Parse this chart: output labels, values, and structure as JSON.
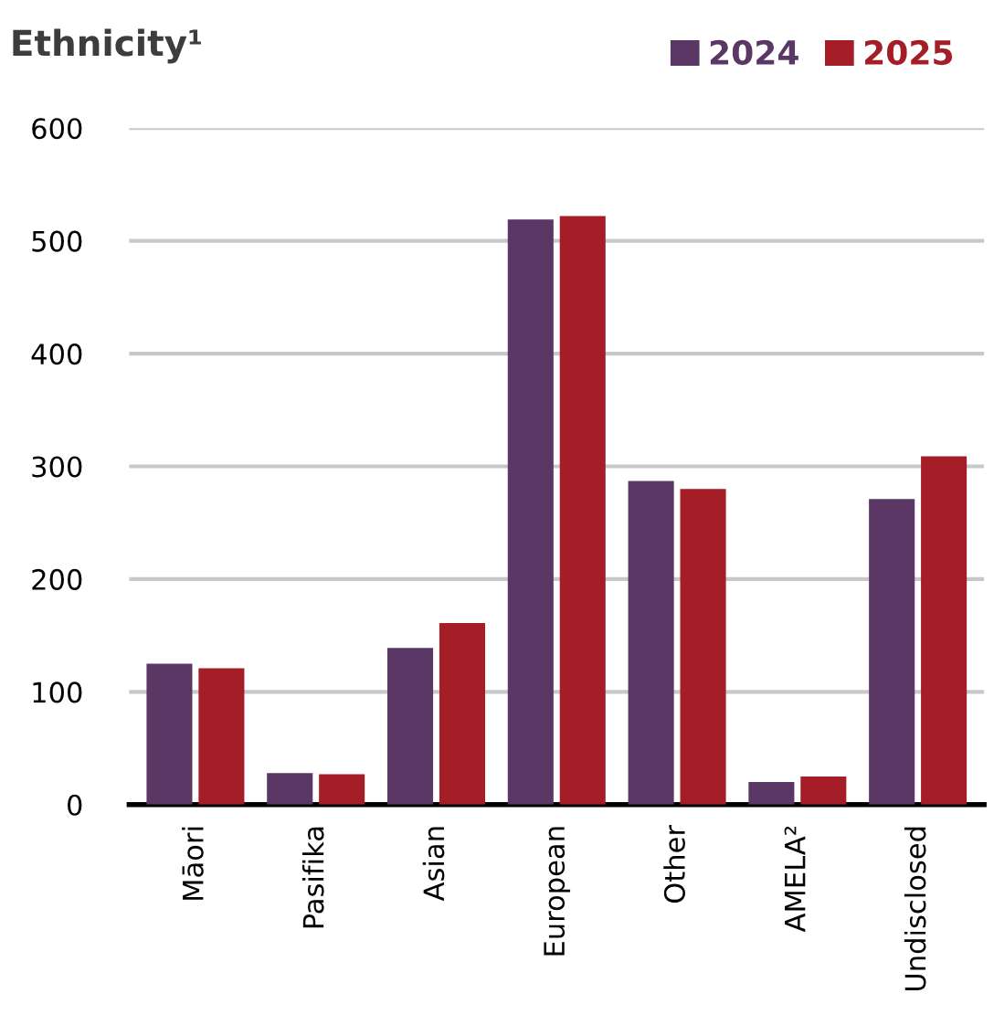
{
  "chart_data": {
    "type": "bar",
    "title": "Ethnicity¹",
    "categories": [
      "Māori",
      "Pasifika",
      "Asian",
      "European",
      "Other",
      "AMELA²",
      "Undisclosed"
    ],
    "series": [
      {
        "name": "2024",
        "color": "#5b3766",
        "values": [
          125,
          28,
          139,
          519,
          287,
          20,
          271
        ]
      },
      {
        "name": "2025",
        "color": "#a51d26",
        "values": [
          121,
          27,
          161,
          522,
          280,
          25,
          309
        ]
      }
    ],
    "ylim": [
      0,
      600
    ],
    "yticks": [
      0,
      100,
      200,
      300,
      400,
      500,
      600
    ],
    "grid": "y",
    "legend": "top right"
  }
}
